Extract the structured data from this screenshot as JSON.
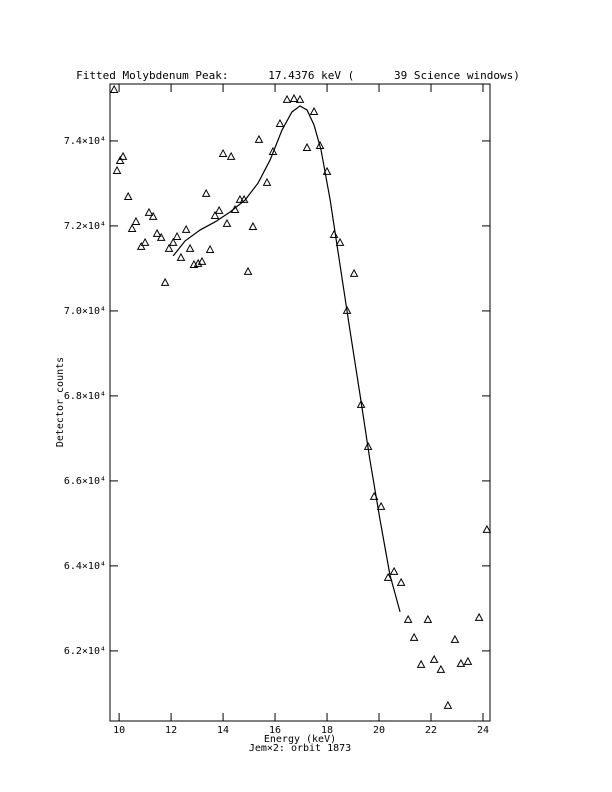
{
  "chart_data": {
    "type": "scatter",
    "title": "Fitted Molybdenum Peak:      17.4376 keV (      39 Science windows)",
    "x_label": "Energy (keV)",
    "y_label": "Detector counts",
    "subtitle": "Jem×2: orbit 1873",
    "xlim": [
      9.65,
      24.27
    ],
    "ylim": [
      60350,
      75340
    ],
    "xticks": [
      10,
      12,
      14,
      16,
      18,
      20,
      22,
      24
    ],
    "yticks": [
      {
        "value": 62000,
        "label": "6.2×10⁴"
      },
      {
        "value": 64000,
        "label": "6.4×10⁴"
      },
      {
        "value": 66000,
        "label": "6.6×10⁴"
      },
      {
        "value": 68000,
        "label": "6.8×10⁴"
      },
      {
        "value": 70000,
        "label": "7.0×10⁴"
      },
      {
        "value": 72000,
        "label": "7.2×10⁴"
      },
      {
        "value": 74000,
        "label": "7.4×10⁴"
      }
    ],
    "series": [
      {
        "type": "scatter",
        "color": "#000000",
        "x": [
          9.81,
          9.92,
          10.04,
          10.15,
          10.35,
          10.5,
          10.65,
          10.85,
          11.0,
          11.15,
          11.31,
          11.46,
          11.62,
          11.77,
          11.92,
          12.08,
          12.23,
          12.38,
          12.58,
          12.73,
          12.88,
          13.04,
          13.19,
          13.35,
          13.5,
          13.69,
          13.85,
          14.0,
          14.15,
          14.31,
          14.46,
          14.65,
          14.81,
          14.96,
          15.15,
          15.38,
          15.69,
          15.92,
          16.19,
          16.46,
          16.73,
          16.96,
          17.23,
          17.5,
          17.73,
          18.0,
          18.27,
          18.5,
          18.77,
          19.04,
          19.31,
          19.58,
          19.81,
          20.08,
          20.35,
          20.58,
          20.85,
          21.12,
          21.35,
          21.62,
          21.88,
          22.12,
          22.38,
          22.65,
          22.92,
          23.15,
          23.42,
          23.85,
          24.15
        ],
        "values": [
          75200,
          73294,
          73529,
          73624,
          72682,
          71929,
          72094,
          71506,
          71600,
          72306,
          72212,
          71812,
          71718,
          70659,
          71459,
          71600,
          71741,
          71247,
          71906,
          71459,
          71082,
          71106,
          71153,
          72753,
          71435,
          72235,
          72353,
          73694,
          72047,
          73624,
          72376,
          72612,
          72612,
          70918,
          71976,
          74024,
          73012,
          73741,
          74400,
          74965,
          74988,
          74965,
          73835,
          74682,
          73882,
          73271,
          71788,
          71600,
          70000,
          70871,
          67788,
          66800,
          65624,
          65388,
          63718,
          63859,
          63600,
          62729,
          62306,
          61671,
          62729,
          61788,
          61553,
          60706,
          62259,
          61694,
          61741,
          62776,
          64847
        ]
      },
      {
        "type": "line",
        "color": "#000000",
        "x": [
          12.08,
          12.54,
          13.12,
          13.69,
          14.27,
          14.85,
          15.35,
          15.81,
          16.27,
          16.65,
          16.96,
          17.23,
          17.5,
          17.77,
          18.12,
          18.5,
          18.88,
          19.27,
          19.65,
          20.04,
          20.42,
          20.81
        ],
        "values": [
          71294,
          71647,
          71906,
          72094,
          72329,
          72612,
          73012,
          73553,
          74259,
          74682,
          74824,
          74729,
          74376,
          73788,
          72612,
          71082,
          69553,
          68024,
          66494,
          65082,
          63788,
          62918
        ]
      }
    ]
  }
}
